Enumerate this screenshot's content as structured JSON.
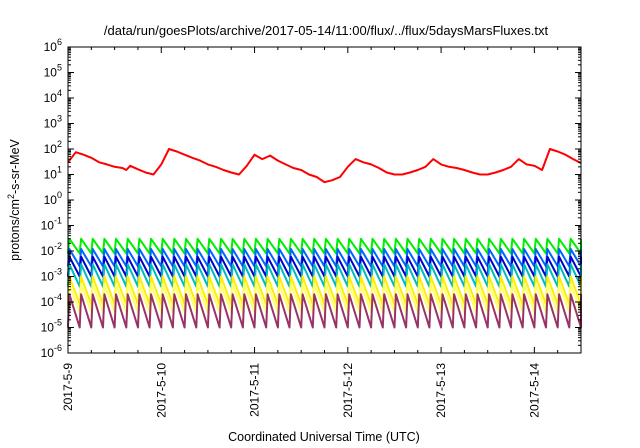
{
  "chart_data": {
    "type": "line",
    "title": "/data/run/goesPlots/archive/2017-05-14/11:00/flux/../flux/5daysMarsFluxes.txt",
    "xlabel": "Coordinated Universal Time (UTC)",
    "ylabel": "protons/cm²-s-sr-MeV",
    "yscale": "log",
    "ylim": [
      1e-06,
      1000000.0
    ],
    "xlim": [
      "2017-05-09 00:00",
      "2017-05-14 12:00"
    ],
    "x_ticks": [
      "2017-5-9",
      "2017-5-10",
      "2017-5-11",
      "2017-5-12",
      "2017-5-13",
      "2017-5-14"
    ],
    "y_ticks": [
      {
        "exp": -6
      },
      {
        "exp": -5
      },
      {
        "exp": -4
      },
      {
        "exp": -3
      },
      {
        "exp": -2
      },
      {
        "exp": -1
      },
      {
        "exp": 0
      },
      {
        "exp": 1
      },
      {
        "exp": 2
      },
      {
        "exp": 3
      },
      {
        "exp": 4
      },
      {
        "exp": 5
      },
      {
        "exp": 6
      }
    ],
    "grid": false,
    "legend": "none",
    "sawtooth_period_hours": 3,
    "series": [
      {
        "color": "#ff0000",
        "x": [
          "2017-05-09 00:00",
          "2017-05-09 02:00",
          "2017-05-09 04:00",
          "2017-05-09 06:00",
          "2017-05-09 08:00",
          "2017-05-09 10:00",
          "2017-05-09 12:00",
          "2017-05-09 14:00",
          "2017-05-09 15:00",
          "2017-05-09 16:00",
          "2017-05-09 18:00",
          "2017-05-09 20:00",
          "2017-05-09 22:00",
          "2017-05-10 00:00",
          "2017-05-10 02:00",
          "2017-05-10 04:00",
          "2017-05-10 06:00",
          "2017-05-10 08:00",
          "2017-05-10 10:00",
          "2017-05-10 12:00",
          "2017-05-10 14:00",
          "2017-05-10 16:00",
          "2017-05-10 18:00",
          "2017-05-10 20:00",
          "2017-05-10 22:00",
          "2017-05-11 00:00",
          "2017-05-11 02:00",
          "2017-05-11 04:00",
          "2017-05-11 06:00",
          "2017-05-11 08:00",
          "2017-05-11 10:00",
          "2017-05-11 12:00",
          "2017-05-11 14:00",
          "2017-05-11 16:00",
          "2017-05-11 18:00",
          "2017-05-11 20:00",
          "2017-05-11 22:00",
          "2017-05-12 00:00",
          "2017-05-12 02:00",
          "2017-05-12 04:00",
          "2017-05-12 06:00",
          "2017-05-12 08:00",
          "2017-05-12 10:00",
          "2017-05-12 12:00",
          "2017-05-12 14:00",
          "2017-05-12 16:00",
          "2017-05-12 18:00",
          "2017-05-12 20:00",
          "2017-05-12 22:00",
          "2017-05-13 00:00",
          "2017-05-13 02:00",
          "2017-05-13 04:00",
          "2017-05-13 06:00",
          "2017-05-13 08:00",
          "2017-05-13 10:00",
          "2017-05-13 12:00",
          "2017-05-13 14:00",
          "2017-05-13 16:00",
          "2017-05-13 18:00",
          "2017-05-13 20:00",
          "2017-05-13 22:00",
          "2017-05-14 00:00",
          "2017-05-14 02:00",
          "2017-05-14 04:00",
          "2017-05-14 06:00",
          "2017-05-14 08:00",
          "2017-05-14 10:00",
          "2017-05-14 12:00"
        ],
        "values": [
          30,
          75,
          60,
          45,
          30,
          25,
          20,
          18,
          15,
          22,
          16,
          12,
          10,
          25,
          100,
          80,
          60,
          45,
          35,
          25,
          20,
          15,
          12,
          10,
          22,
          60,
          40,
          55,
          35,
          25,
          18,
          15,
          10,
          8,
          5,
          6,
          8,
          20,
          40,
          30,
          25,
          18,
          12,
          10,
          10,
          12,
          15,
          20,
          40,
          25,
          20,
          18,
          15,
          12,
          10,
          10,
          12,
          15,
          20,
          40,
          25,
          22,
          15,
          100,
          80,
          60,
          40,
          28
        ]
      },
      {
        "color": "#00ee00",
        "x": [
          "2017-05-09 00:00",
          "2017-05-14 12:00"
        ],
        "peak": 0.03,
        "trough": 0.008
      },
      {
        "color": "#0066ff",
        "x": [
          "2017-05-09 00:00",
          "2017-05-14 12:00"
        ],
        "peak": 0.012,
        "trough": 0.0025
      },
      {
        "color": "#0000cc",
        "x": [
          "2017-05-09 00:00",
          "2017-05-14 12:00"
        ],
        "peak": 0.006,
        "trough": 0.001
      },
      {
        "color": "#00bbbb",
        "x": [
          "2017-05-09 00:00",
          "2017-05-14 12:00"
        ],
        "peak": 0.003,
        "trough": 0.0004
      },
      {
        "color": "#ffee00",
        "x": [
          "2017-05-09 00:00",
          "2017-05-14 12:00"
        ],
        "peak": 0.001,
        "trough": 8e-05
      },
      {
        "color": "#ffff66",
        "x": [
          "2017-05-09 00:00",
          "2017-05-14 12:00"
        ],
        "peak": 0.0005,
        "trough": 4e-05
      },
      {
        "color": "#993366",
        "x": [
          "2017-05-09 00:00",
          "2017-05-14 12:00"
        ],
        "peak": 0.0002,
        "trough": 1e-05
      }
    ]
  }
}
